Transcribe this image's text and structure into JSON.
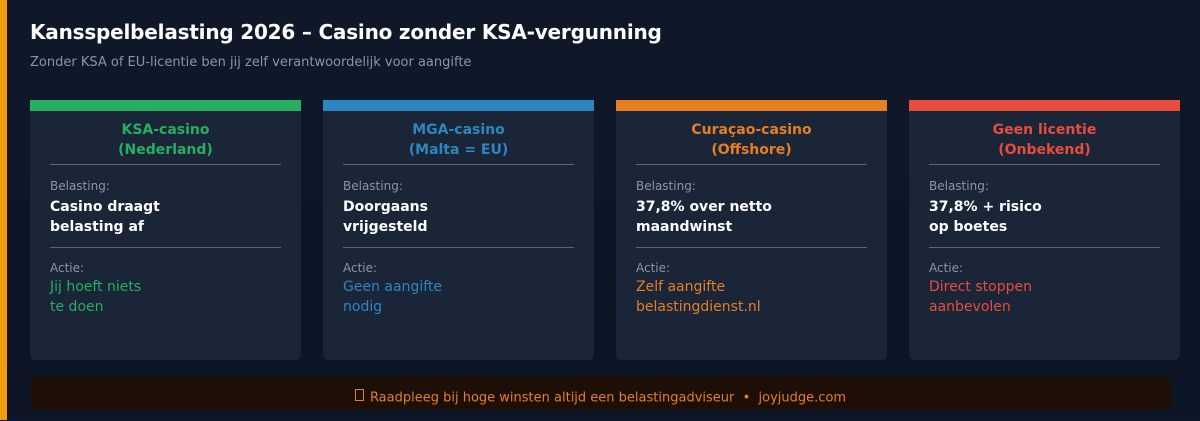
{
  "header": {
    "title": "Kansspelbelasting 2026 – Casino zonder KSA-vergunning",
    "subtitle": "Zonder KSA of EU-licentie ben jij zelf verantwoordelijk voor aangifte"
  },
  "colors": {
    "green": "#27ae60",
    "blue": "#2e86c1",
    "orange": "#e67e22",
    "red": "#e74c3c",
    "side_accent": "#f39c12"
  },
  "cards": [
    {
      "title_line1": "KSA-casino",
      "title_line2": "(Nederland)",
      "tax_label": "Belasting:",
      "tax_line1": "Casino draagt",
      "tax_line2": "belasting af",
      "action_label": "Actie:",
      "action_line1": "Jij hoeft niets",
      "action_line2": "te doen"
    },
    {
      "title_line1": "MGA-casino",
      "title_line2": "(Malta = EU)",
      "tax_label": "Belasting:",
      "tax_line1": "Doorgaans",
      "tax_line2": "vrijgesteld",
      "action_label": "Actie:",
      "action_line1": "Geen aangifte",
      "action_line2": "nodig"
    },
    {
      "title_line1": "Curaçao-casino",
      "title_line2": "(Offshore)",
      "tax_label": "Belasting:",
      "tax_line1": "37,8% over netto",
      "tax_line2": "maandwinst",
      "action_label": "Actie:",
      "action_line1": "Zelf aangifte",
      "action_line2": "belastingdienst.nl"
    },
    {
      "title_line1": "Geen licentie",
      "title_line2": "(Onbekend)",
      "tax_label": "Belasting:",
      "tax_line1": "37,8% + risico",
      "tax_line2": "op boetes",
      "action_label": "Actie:",
      "action_line1": "Direct stoppen",
      "action_line2": "aanbevolen"
    }
  ],
  "footer": {
    "icon": "lightbulb-icon",
    "text": "Raadpleeg bij hoge winsten altijd een belastingadviseur  •  joyjudge.com"
  }
}
